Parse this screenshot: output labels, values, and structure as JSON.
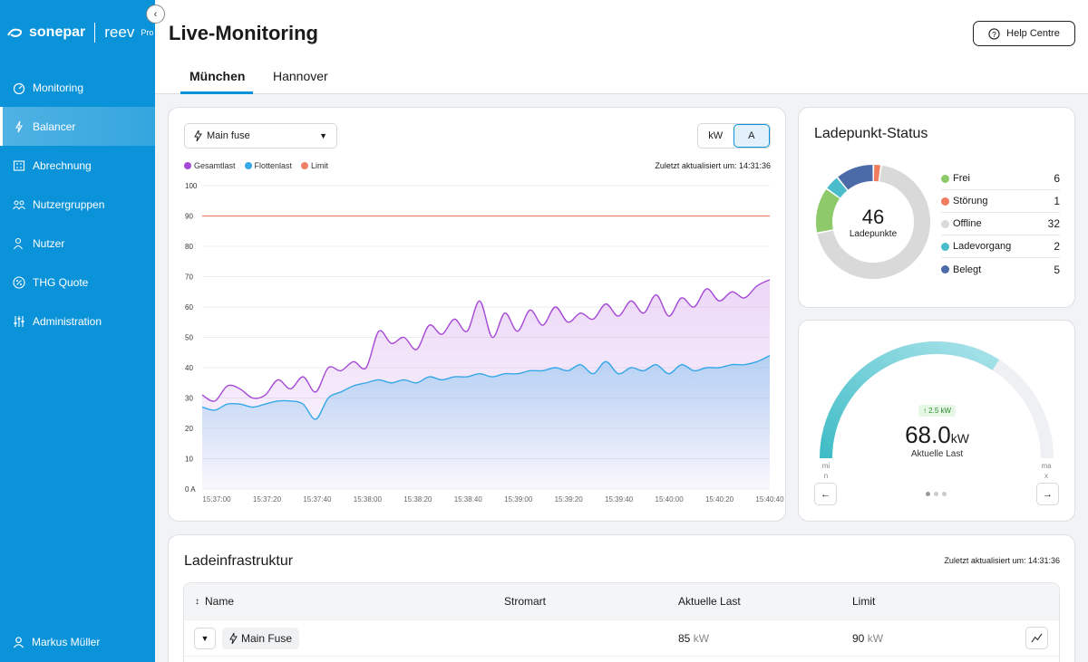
{
  "brand": {
    "sonepar": "sonepar",
    "reev": "reev",
    "pro": "Pro"
  },
  "nav": [
    {
      "label": "Monitoring",
      "icon": "gauge-icon"
    },
    {
      "label": "Balancer",
      "icon": "bolt-icon",
      "active": true
    },
    {
      "label": "Abrechnung",
      "icon": "billing-icon"
    },
    {
      "label": "Nutzergruppen",
      "icon": "users-icon"
    },
    {
      "label": "Nutzer",
      "icon": "user-icon"
    },
    {
      "label": "THG Quote",
      "icon": "percent-icon"
    },
    {
      "label": "Administration",
      "icon": "sliders-icon"
    }
  ],
  "user": {
    "name": "Markus Müller"
  },
  "header": {
    "title": "Live-Monitoring",
    "help": "Help Centre",
    "tabs": [
      "München",
      "Hannover"
    ]
  },
  "chart_panel": {
    "dropdown": "Main fuse",
    "units": [
      "kW",
      "A"
    ],
    "selected_unit": "A",
    "updated": "Zuletzt aktualisiert um: 14:31:36"
  },
  "chart_data": {
    "type": "area",
    "title": "",
    "ylabel": "",
    "yunit": "A",
    "ylim": [
      0,
      100
    ],
    "yticks": [
      0,
      10,
      20,
      30,
      40,
      50,
      60,
      70,
      80,
      90,
      100
    ],
    "ytick_labels": [
      "0 A",
      "10",
      "20",
      "30",
      "40",
      "50",
      "60",
      "70",
      "80",
      "90",
      "100"
    ],
    "x_tick_labels": [
      "15:37:00",
      "15:37:20",
      "15:37:40",
      "15:38:00",
      "15:38:20",
      "15:38:40",
      "15:39:00",
      "15:39:20",
      "15:39:40",
      "15:40:00",
      "15:40:20",
      "15:40:40"
    ],
    "xrange_seconds": [
      0,
      225
    ],
    "series": [
      {
        "name": "Gesamtlast",
        "color": "#a64ad6",
        "x": [
          0,
          5,
          10,
          15,
          20,
          25,
          30,
          35,
          40,
          45,
          50,
          55,
          60,
          65,
          70,
          75,
          80,
          85,
          90,
          95,
          100,
          105,
          110,
          115,
          120,
          125,
          130,
          135,
          140,
          145,
          150,
          155,
          160,
          165,
          170,
          175,
          180,
          185,
          190,
          195,
          200,
          205,
          210,
          215,
          220,
          225
        ],
        "values": [
          31,
          29,
          34,
          33,
          30,
          31,
          36,
          33,
          37,
          32,
          40,
          39,
          42,
          40,
          52,
          48,
          50,
          46,
          54,
          51,
          56,
          52,
          62,
          50,
          58,
          52,
          59,
          54,
          60,
          55,
          58,
          56,
          61,
          57,
          62,
          58,
          64,
          57,
          63,
          60,
          66,
          62,
          65,
          63,
          67,
          69
        ]
      },
      {
        "name": "Flottenlast",
        "color": "#35a8e8",
        "x": [
          0,
          5,
          10,
          15,
          20,
          25,
          30,
          35,
          40,
          45,
          50,
          55,
          60,
          65,
          70,
          75,
          80,
          85,
          90,
          95,
          100,
          105,
          110,
          115,
          120,
          125,
          130,
          135,
          140,
          145,
          150,
          155,
          160,
          165,
          170,
          175,
          180,
          185,
          190,
          195,
          200,
          205,
          210,
          215,
          220,
          225
        ],
        "values": [
          27,
          26,
          28,
          28,
          27,
          28,
          29,
          29,
          28,
          23,
          30,
          32,
          34,
          35,
          36,
          35,
          36,
          35,
          37,
          36,
          37,
          37,
          38,
          37,
          38,
          38,
          39,
          39,
          40,
          39,
          41,
          38,
          42,
          38,
          40,
          39,
          41,
          38,
          41,
          39,
          40,
          40,
          41,
          41,
          42,
          44
        ]
      },
      {
        "name": "Limit",
        "color": "#ee8068",
        "x": [
          0,
          225
        ],
        "values": [
          90,
          90
        ]
      }
    ],
    "legend": "top-left",
    "grid": true
  },
  "status": {
    "title": "Ladepunkt-Status",
    "total": "46",
    "total_label": "Ladepunkte",
    "items": [
      {
        "label": "Frei",
        "count": "6",
        "color": "#8ec96a"
      },
      {
        "label": "Störung",
        "count": "1",
        "color": "#ef7d5e"
      },
      {
        "label": "Offline",
        "count": "32",
        "color": "#d9d9d9"
      },
      {
        "label": "Ladevorgang",
        "count": "2",
        "color": "#4bbccb"
      },
      {
        "label": "Belegt",
        "count": "5",
        "color": "#4b6aa8"
      }
    ]
  },
  "gauge": {
    "delta": "↑ 2.5 kW",
    "value": "68.0",
    "unit": "kW",
    "label": "Aktuelle Last",
    "min_label": "mi\nn",
    "max_label": "ma\nx",
    "fraction": 0.68
  },
  "infra": {
    "title": "Ladeinfrastruktur",
    "updated": "Zuletzt aktualisiert um: 14:31:36",
    "columns": [
      "Name",
      "Stromart",
      "Aktuelle Last",
      "Limit"
    ],
    "rows": [
      {
        "name": "Main Fuse",
        "stromart": "",
        "load_value": "85",
        "load_unit": "kW",
        "limit_value": "90",
        "limit_unit": "kW"
      }
    ]
  }
}
